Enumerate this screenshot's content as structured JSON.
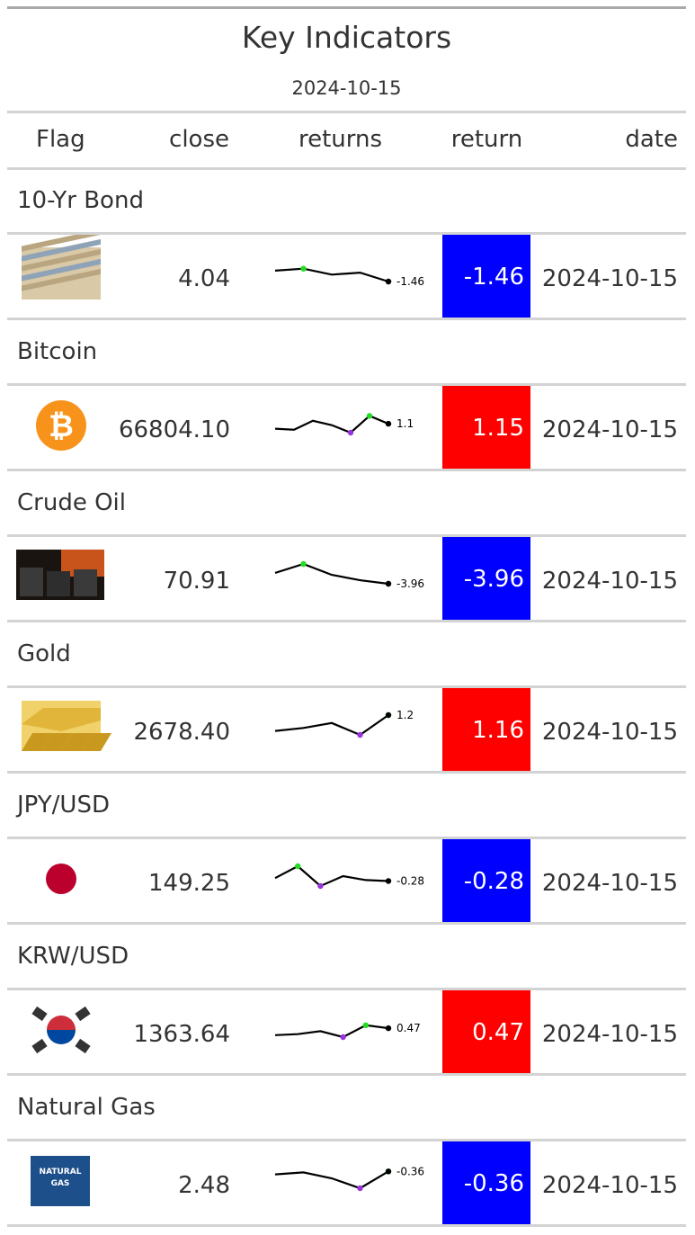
{
  "title": "Key Indicators",
  "subtitle": "2024-10-15",
  "columns": {
    "flag": "Flag",
    "close": "close",
    "returns": "returns",
    "return": "return",
    "date": "date"
  },
  "colors": {
    "positive": "#ff0000",
    "negative": "#0000ff",
    "spark_max": "#22dd22",
    "spark_min": "#9933dd",
    "spark_last": "#000000"
  },
  "rows": [
    {
      "group": "10-Yr Bond",
      "flag_icon": "bond-certificates-icon",
      "close": "4.04",
      "spark": [
        0.55,
        0.65,
        0.35,
        0.45,
        0.0
      ],
      "spark_label": "-1.46",
      "return": "-1.46",
      "return_value": -1.46,
      "date": "2024-10-15"
    },
    {
      "group": "Bitcoin",
      "flag_icon": "bitcoin-icon",
      "close": "66804.10",
      "spark": [
        0.2,
        0.15,
        0.6,
        0.38,
        0.0,
        0.85,
        0.45
      ],
      "spark_label": "1.1",
      "return": "1.15",
      "return_value": 1.15,
      "date": "2024-10-15"
    },
    {
      "group": "Crude Oil",
      "flag_icon": "oil-barrels-icon",
      "close": "70.91",
      "spark": [
        0.55,
        1.0,
        0.45,
        0.18,
        0.0
      ],
      "spark_label": "-3.96",
      "return": "-3.96",
      "return_value": -3.96,
      "date": "2024-10-15"
    },
    {
      "group": "Gold",
      "flag_icon": "gold-bars-icon",
      "close": "2678.40",
      "spark": [
        0.2,
        0.35,
        0.6,
        0.0,
        1.0
      ],
      "spark_label": "1.2",
      "return": "1.16",
      "return_value": 1.16,
      "date": "2024-10-15"
    },
    {
      "group": "JPY/USD",
      "flag_icon": "japan-flag-icon",
      "close": "149.25",
      "spark": [
        0.4,
        1.0,
        0.0,
        0.5,
        0.3,
        0.25
      ],
      "spark_label": "-0.28",
      "return": "-0.28",
      "return_value": -0.28,
      "date": "2024-10-15"
    },
    {
      "group": "KRW/USD",
      "flag_icon": "south-korea-flag-icon",
      "close": "1363.64",
      "spark": [
        0.1,
        0.15,
        0.3,
        0.0,
        0.6,
        0.45
      ],
      "spark_label": "0.47",
      "return": "0.47",
      "return_value": 0.47,
      "date": "2024-10-15"
    },
    {
      "group": "Natural Gas",
      "flag_icon": "natural-gas-icon",
      "flag_text": [
        "NATURAL",
        "GAS"
      ],
      "close": "2.48",
      "spark": [
        0.7,
        0.8,
        0.5,
        0.0,
        0.85
      ],
      "spark_label": "-0.36",
      "return": "-0.36",
      "return_value": -0.36,
      "date": "2024-10-15"
    }
  ]
}
